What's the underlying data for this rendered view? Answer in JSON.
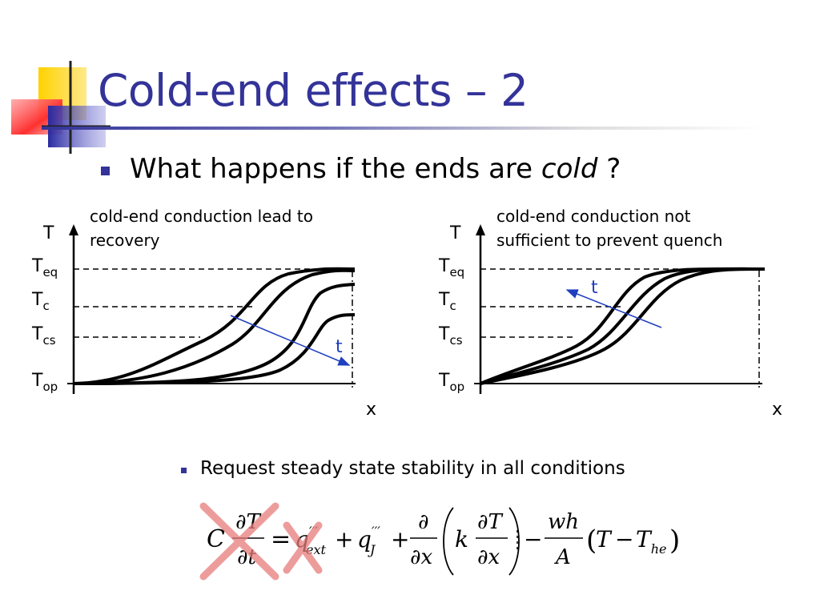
{
  "slide": {
    "title": "Cold-end effects – 2",
    "bullet_main": {
      "lead": "What happens if the ends are ",
      "emphasis": "cold",
      "tail": " ?"
    },
    "bullet_sub": "Request steady state stability in all conditions"
  },
  "left_plot": {
    "caption_lines": [
      "cold-end conduction lead to",
      "recovery"
    ],
    "y_axis_label": "T",
    "x_axis_label": "x",
    "levels": [
      {
        "main": "T",
        "sub": "eq"
      },
      {
        "main": "T",
        "sub": "c"
      },
      {
        "main": "T",
        "sub": "cs"
      },
      {
        "main": "T",
        "sub": "op"
      }
    ],
    "arrow_label": "t"
  },
  "right_plot": {
    "caption_lines": [
      "cold-end conduction not",
      "sufficient to prevent quench"
    ],
    "y_axis_label": "T",
    "x_axis_label": "x",
    "levels": [
      {
        "main": "T",
        "sub": "eq"
      },
      {
        "main": "T",
        "sub": "c"
      },
      {
        "main": "T",
        "sub": "cs"
      },
      {
        "main": "T",
        "sub": "op"
      }
    ],
    "arrow_label": "t"
  },
  "equation": {
    "C": "C",
    "dT": "∂T",
    "dt": "∂t",
    "eq_sign": "=",
    "q_ext": "q",
    "q_ext_sup": "′′′",
    "q_ext_sub": "ext",
    "plus1": "+",
    "q_J": "q",
    "q_J_sup": "′′′",
    "q_J_sub": "J",
    "plus2": "+",
    "d_num": "∂",
    "dx1": "∂x",
    "lparen": "(",
    "k": "k",
    "dT2": "∂T",
    "dx2": "∂x",
    "rparen": ")",
    "minus": "−",
    "wh": "wh",
    "A": "A",
    "lparen2": "(",
    "T": "T",
    "minus2": "−",
    "T_he": "T",
    "T_he_sub": "he",
    "rparen2": ")"
  },
  "colors": {
    "title": "#333399",
    "bullet": "#333399",
    "arrow": "#1f3fbf",
    "cross": "#e87c7c",
    "deco_yellow": "#ffd200",
    "deco_red": "#ff4444",
    "deco_blue": "#2a2aa0"
  }
}
